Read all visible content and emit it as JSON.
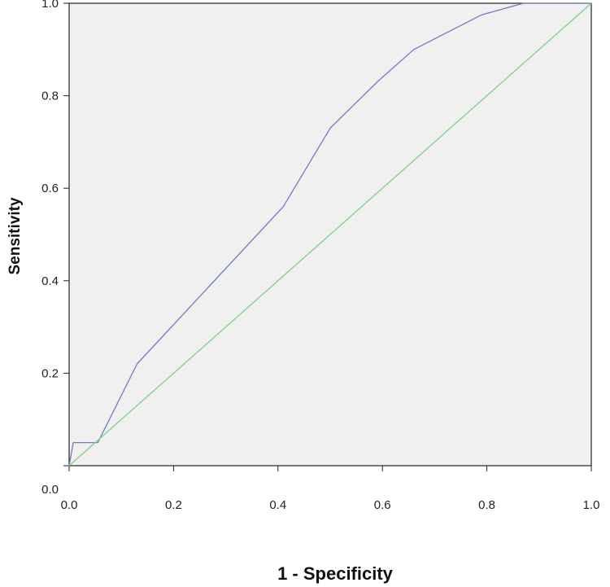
{
  "chart_data": {
    "type": "line",
    "title": "",
    "xlabel": "1 - Specificity",
    "ylabel": "Sensitivity",
    "xlim": [
      0,
      1
    ],
    "ylim": [
      0,
      1
    ],
    "x_ticks": [
      "0.0",
      "0.2",
      "0.4",
      "0.6",
      "0.8",
      "1.0"
    ],
    "y_ticks": [
      "0.0",
      "0.2",
      "0.4",
      "0.6",
      "0.8",
      "1.0"
    ],
    "grid": false,
    "legend": "none",
    "background_color": "#f0f0f0",
    "series": [
      {
        "color": "#6f7cc0",
        "x": [
          0.0,
          0.008,
          0.055,
          0.13,
          0.41,
          0.5,
          0.59,
          0.66,
          0.79,
          0.87,
          1.0
        ],
        "y": [
          0.0,
          0.05,
          0.05,
          0.22,
          0.56,
          0.73,
          0.83,
          0.9,
          0.975,
          1.0,
          1.0
        ]
      },
      {
        "color": "#7fd17f",
        "x": [
          0.0,
          1.0
        ],
        "y": [
          0.0,
          1.0
        ]
      }
    ]
  }
}
